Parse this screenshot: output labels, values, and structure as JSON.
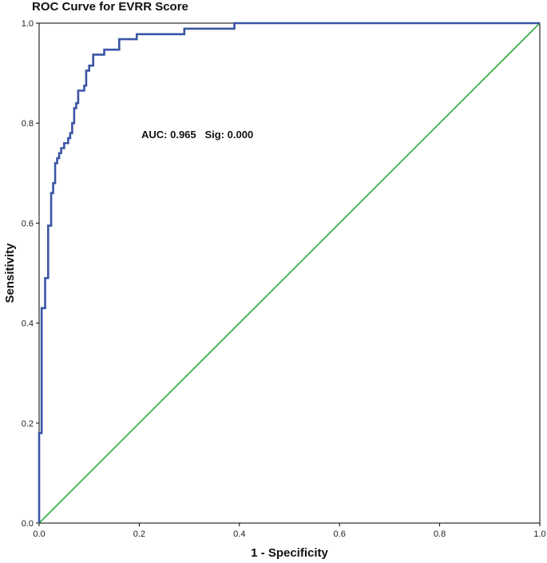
{
  "chart_data": {
    "type": "line",
    "title": "ROC Curve for EVRR Score",
    "xlabel": "1 - Specificity",
    "ylabel": "Sensitivity",
    "xlim": [
      0,
      1
    ],
    "ylim": [
      0,
      1
    ],
    "x_ticks": [
      "0.0",
      "0.2",
      "0.4",
      "0.6",
      "0.8",
      "1.0"
    ],
    "y_ticks": [
      "0.0",
      "0.2",
      "0.4",
      "0.6",
      "0.8",
      "1.0"
    ],
    "annotation": "AUC: 0.965   Sig: 0.000",
    "grid": false,
    "legend": "none",
    "series": [
      {
        "color": "#3a55a4",
        "points": [
          [
            0.0,
            0.0
          ],
          [
            0.0,
            0.18
          ],
          [
            0.005,
            0.18
          ],
          [
            0.005,
            0.43
          ],
          [
            0.012,
            0.43
          ],
          [
            0.012,
            0.49
          ],
          [
            0.018,
            0.49
          ],
          [
            0.018,
            0.595
          ],
          [
            0.024,
            0.595
          ],
          [
            0.024,
            0.66
          ],
          [
            0.028,
            0.66
          ],
          [
            0.028,
            0.68
          ],
          [
            0.032,
            0.68
          ],
          [
            0.032,
            0.72
          ],
          [
            0.036,
            0.72
          ],
          [
            0.036,
            0.73
          ],
          [
            0.04,
            0.73
          ],
          [
            0.04,
            0.74
          ],
          [
            0.044,
            0.74
          ],
          [
            0.044,
            0.75
          ],
          [
            0.05,
            0.75
          ],
          [
            0.05,
            0.76
          ],
          [
            0.058,
            0.76
          ],
          [
            0.058,
            0.77
          ],
          [
            0.062,
            0.77
          ],
          [
            0.062,
            0.78
          ],
          [
            0.066,
            0.78
          ],
          [
            0.066,
            0.8
          ],
          [
            0.07,
            0.8
          ],
          [
            0.07,
            0.83
          ],
          [
            0.074,
            0.83
          ],
          [
            0.074,
            0.84
          ],
          [
            0.078,
            0.84
          ],
          [
            0.078,
            0.865
          ],
          [
            0.09,
            0.865
          ],
          [
            0.09,
            0.875
          ],
          [
            0.094,
            0.875
          ],
          [
            0.094,
            0.905
          ],
          [
            0.1,
            0.905
          ],
          [
            0.1,
            0.915
          ],
          [
            0.108,
            0.915
          ],
          [
            0.108,
            0.937
          ],
          [
            0.13,
            0.937
          ],
          [
            0.13,
            0.947
          ],
          [
            0.16,
            0.947
          ],
          [
            0.16,
            0.968
          ],
          [
            0.195,
            0.968
          ],
          [
            0.195,
            0.978
          ],
          [
            0.29,
            0.978
          ],
          [
            0.29,
            0.989
          ],
          [
            0.39,
            0.989
          ],
          [
            0.39,
            1.0
          ],
          [
            1.0,
            1.0
          ]
        ]
      },
      {
        "color": "#3cb34a",
        "points": [
          [
            0.0,
            0.0
          ],
          [
            1.0,
            1.0
          ]
        ]
      }
    ]
  }
}
